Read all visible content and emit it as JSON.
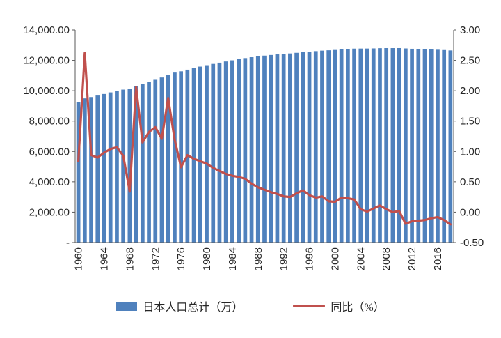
{
  "chart_data": {
    "type": "bar+line-combo",
    "title": "",
    "categories": [
      "1960",
      "1961",
      "1962",
      "1963",
      "1964",
      "1965",
      "1966",
      "1967",
      "1968",
      "1969",
      "1970",
      "1971",
      "1972",
      "1973",
      "1974",
      "1975",
      "1976",
      "1977",
      "1978",
      "1979",
      "1980",
      "1981",
      "1982",
      "1983",
      "1984",
      "1985",
      "1986",
      "1987",
      "1988",
      "1989",
      "1990",
      "1991",
      "1992",
      "1993",
      "1994",
      "1995",
      "1996",
      "1997",
      "1998",
      "1999",
      "2000",
      "2001",
      "2002",
      "2003",
      "2004",
      "2005",
      "2006",
      "2007",
      "2008",
      "2009",
      "2010",
      "2011",
      "2012",
      "2013",
      "2014",
      "2015",
      "2016",
      "2017",
      "2018"
    ],
    "series": [
      {
        "name": "日本人口总计（万）",
        "type": "bar",
        "axis": "left",
        "color": "#4F81BD",
        "values": [
          9250,
          9494,
          9583,
          9681,
          9783,
          9888,
          9979,
          10073,
          10106,
          10317,
          10435,
          10570,
          10719,
          10871,
          11016,
          11194,
          11277,
          11386,
          11492,
          11588,
          11680,
          11765,
          11846,
          11926,
          12002,
          12075,
          12149,
          12209,
          12261,
          12312,
          12354,
          12392,
          12423,
          12454,
          12496,
          12544,
          12576,
          12606,
          12640,
          12663,
          12684,
          12715,
          12745,
          12772,
          12776,
          12777,
          12785,
          12800,
          12806,
          12805,
          12807,
          12783,
          12763,
          12745,
          12728,
          12714,
          12699,
          12679,
          12653
        ]
      },
      {
        "name": "同比（%）",
        "type": "line",
        "axis": "right",
        "color": "#C0504D",
        "values": [
          0.84,
          2.62,
          0.94,
          0.9,
          0.98,
          1.04,
          1.07,
          0.93,
          0.34,
          2.06,
          1.15,
          1.32,
          1.4,
          1.21,
          1.88,
          1.2,
          0.74,
          0.94,
          0.88,
          0.84,
          0.8,
          0.73,
          0.68,
          0.63,
          0.6,
          0.58,
          0.55,
          0.47,
          0.41,
          0.37,
          0.33,
          0.3,
          0.26,
          0.25,
          0.31,
          0.36,
          0.28,
          0.24,
          0.26,
          0.18,
          0.17,
          0.24,
          0.23,
          0.21,
          0.05,
          0.01,
          0.06,
          0.11,
          0.05,
          0.0,
          0.02,
          -0.19,
          -0.15,
          -0.14,
          -0.13,
          -0.1,
          -0.08,
          -0.13,
          -0.2
        ]
      }
    ],
    "left_axis": {
      "min": 0,
      "max": 14000,
      "step": 2000,
      "tick_labels": [
        "-",
        "2,000.00",
        "4,000.00",
        "6,000.00",
        "8,000.00",
        "10,000.00",
        "12,000.00",
        "14,000.00"
      ]
    },
    "right_axis": {
      "min": -0.5,
      "max": 3.0,
      "step": 0.5,
      "tick_labels": [
        "-0.50",
        "0.00",
        "0.50",
        "1.00",
        "1.50",
        "2.00",
        "2.50",
        "3.00"
      ]
    },
    "x_axis": {
      "label_interval": 4,
      "tick_labels": [
        "1960",
        "1964",
        "1968",
        "1972",
        "1976",
        "1980",
        "1984",
        "1988",
        "1992",
        "1996",
        "2000",
        "2004",
        "2008",
        "2012",
        "2016"
      ]
    },
    "grid": false,
    "legend_position": "bottom",
    "axis_color": "#595959",
    "text_color": "#262626",
    "background": "#ffffff"
  }
}
